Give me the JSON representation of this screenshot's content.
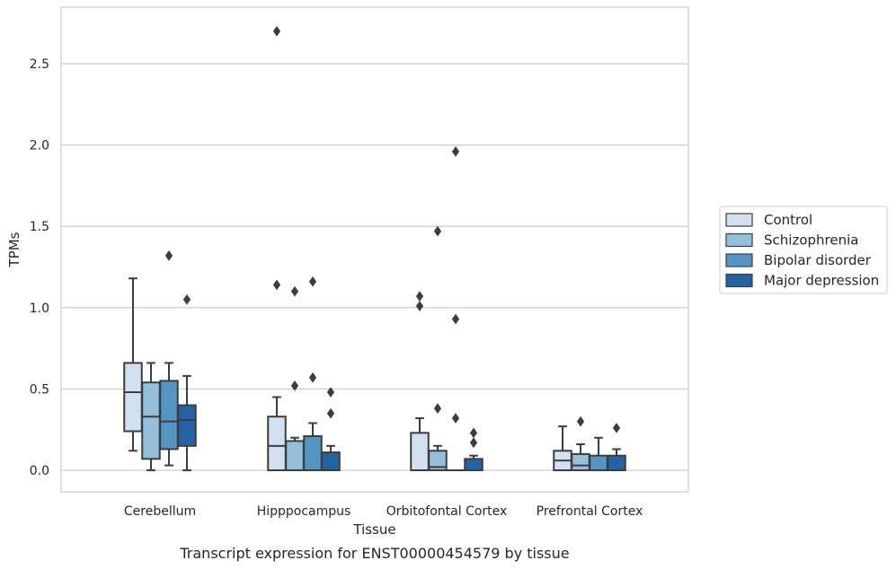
{
  "chart_data": {
    "type": "box",
    "title": "Transcript expression for ENST00000454579 by tissue",
    "xlabel": "Tissue",
    "ylabel": "TPMs",
    "ylim": [
      -0.13,
      2.85
    ],
    "yticks": [
      "0.0",
      "0.5",
      "1.0",
      "1.5",
      "2.0",
      "2.5"
    ],
    "grid": true,
    "legend_position": "right",
    "categories": [
      "Cerebellum",
      "Hipppocampus",
      "Orbitofontal Cortex",
      "Prefrontal Cortex"
    ],
    "colors": [
      "#d2e1f0",
      "#94c0dc",
      "#5595c3",
      "#2563a5"
    ],
    "series": [
      {
        "name": "Control",
        "boxes": [
          {
            "whislo": 0.12,
            "q1": 0.24,
            "med": 0.48,
            "q3": 0.66,
            "whishi": 1.18,
            "fliers": []
          },
          {
            "whislo": 0.0,
            "q1": 0.0,
            "med": 0.15,
            "q3": 0.33,
            "whishi": 0.45,
            "fliers": [
              1.14,
              2.7
            ]
          },
          {
            "whislo": 0.0,
            "q1": 0.0,
            "med": 0.0,
            "q3": 0.23,
            "whishi": 0.32,
            "fliers": [
              1.01,
              1.07
            ]
          },
          {
            "whislo": 0.0,
            "q1": 0.0,
            "med": 0.06,
            "q3": 0.12,
            "whishi": 0.27,
            "fliers": []
          }
        ]
      },
      {
        "name": "Schizophrenia",
        "boxes": [
          {
            "whislo": 0.0,
            "q1": 0.07,
            "med": 0.33,
            "q3": 0.54,
            "whishi": 0.66,
            "fliers": []
          },
          {
            "whislo": 0.0,
            "q1": 0.0,
            "med": 0.0,
            "q3": 0.18,
            "whishi": 0.2,
            "fliers": [
              0.52,
              1.1
            ]
          },
          {
            "whislo": 0.0,
            "q1": 0.0,
            "med": 0.02,
            "q3": 0.12,
            "whishi": 0.15,
            "fliers": [
              0.38,
              1.47
            ]
          },
          {
            "whislo": 0.0,
            "q1": 0.0,
            "med": 0.03,
            "q3": 0.1,
            "whishi": 0.16,
            "fliers": [
              0.3
            ]
          }
        ]
      },
      {
        "name": "Bipolar disorder",
        "boxes": [
          {
            "whislo": 0.03,
            "q1": 0.13,
            "med": 0.3,
            "q3": 0.55,
            "whishi": 0.66,
            "fliers": [
              1.32
            ]
          },
          {
            "whislo": 0.0,
            "q1": 0.0,
            "med": 0.0,
            "q3": 0.21,
            "whishi": 0.29,
            "fliers": [
              0.57,
              1.16
            ]
          },
          {
            "whislo": 0.0,
            "q1": 0.0,
            "med": 0.0,
            "q3": 0.0,
            "whishi": 0.0,
            "fliers": [
              0.32,
              0.93,
              1.96
            ]
          },
          {
            "whislo": 0.0,
            "q1": 0.0,
            "med": 0.0,
            "q3": 0.09,
            "whishi": 0.2,
            "fliers": []
          }
        ]
      },
      {
        "name": "Major depression",
        "boxes": [
          {
            "whislo": 0.0,
            "q1": 0.15,
            "med": 0.31,
            "q3": 0.4,
            "whishi": 0.58,
            "fliers": [
              1.05
            ]
          },
          {
            "whislo": 0.0,
            "q1": 0.0,
            "med": 0.0,
            "q3": 0.11,
            "whishi": 0.15,
            "fliers": [
              0.35,
              0.48
            ]
          },
          {
            "whislo": 0.0,
            "q1": 0.0,
            "med": 0.0,
            "q3": 0.07,
            "whishi": 0.09,
            "fliers": [
              0.17,
              0.23
            ]
          },
          {
            "whislo": 0.0,
            "q1": 0.0,
            "med": 0.0,
            "q3": 0.09,
            "whishi": 0.13,
            "fliers": [
              0.26
            ]
          }
        ]
      }
    ]
  }
}
